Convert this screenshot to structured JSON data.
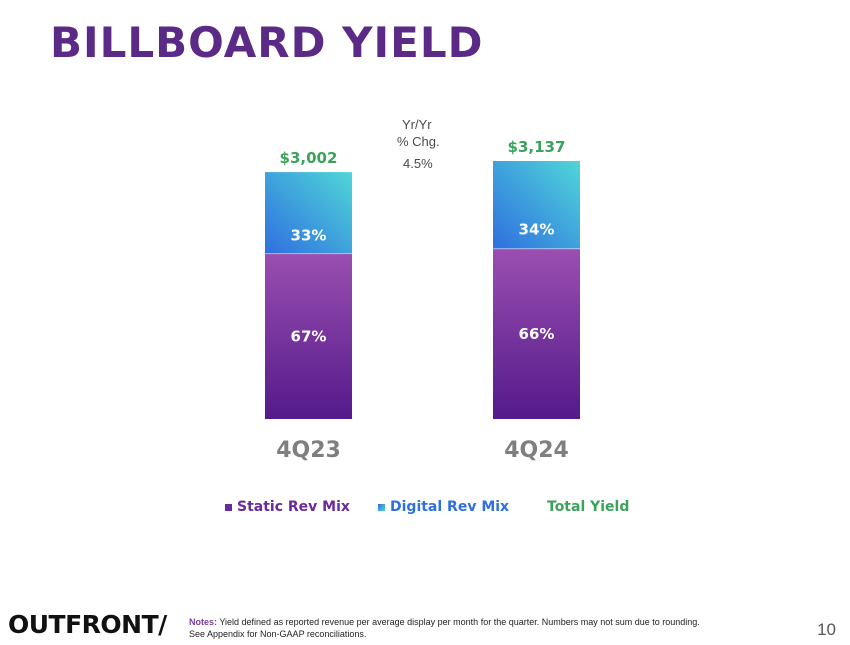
{
  "slide": {
    "title": "BILLBOARD YIELD",
    "logo_text": "OUTFRONT/",
    "notes_prefix": "Notes:",
    "notes_line1": "Yield defined as reported revenue per average display per month for the quarter. Numbers may not sum due to rounding.",
    "notes_line2": "See Appendix for Non-GAAP reconciliations.",
    "page_number": "10"
  },
  "colors": {
    "title": "#5a2a86",
    "static_top": "#9a4fb0",
    "static_bottom": "#541a8a",
    "digital_top": "#4fd6d8",
    "digital_bottom": "#2f6fe0",
    "total": "#3aa35a",
    "category": "#7f7f7f"
  },
  "chart_data": {
    "type": "bar",
    "stacked": true,
    "categories": [
      "4Q23",
      "4Q24"
    ],
    "series": [
      {
        "name": "Static Rev Mix",
        "values": [
          67,
          66
        ],
        "labels": [
          "67%",
          "66%"
        ]
      },
      {
        "name": "Digital Rev Mix",
        "values": [
          33,
          34
        ],
        "labels": [
          "33%",
          "34%"
        ]
      }
    ],
    "totals": {
      "name": "Total Yield",
      "values": [
        3002,
        3137
      ],
      "labels": [
        "$3,002",
        "$3,137"
      ]
    },
    "change": {
      "header_line1": "Yr/Yr",
      "header_line2": "% Chg.",
      "value": "4.5%"
    },
    "legend": [
      "Static Rev Mix",
      "Digital Rev Mix",
      "Total Yield"
    ],
    "legend_position": "bottom",
    "grid": false
  }
}
